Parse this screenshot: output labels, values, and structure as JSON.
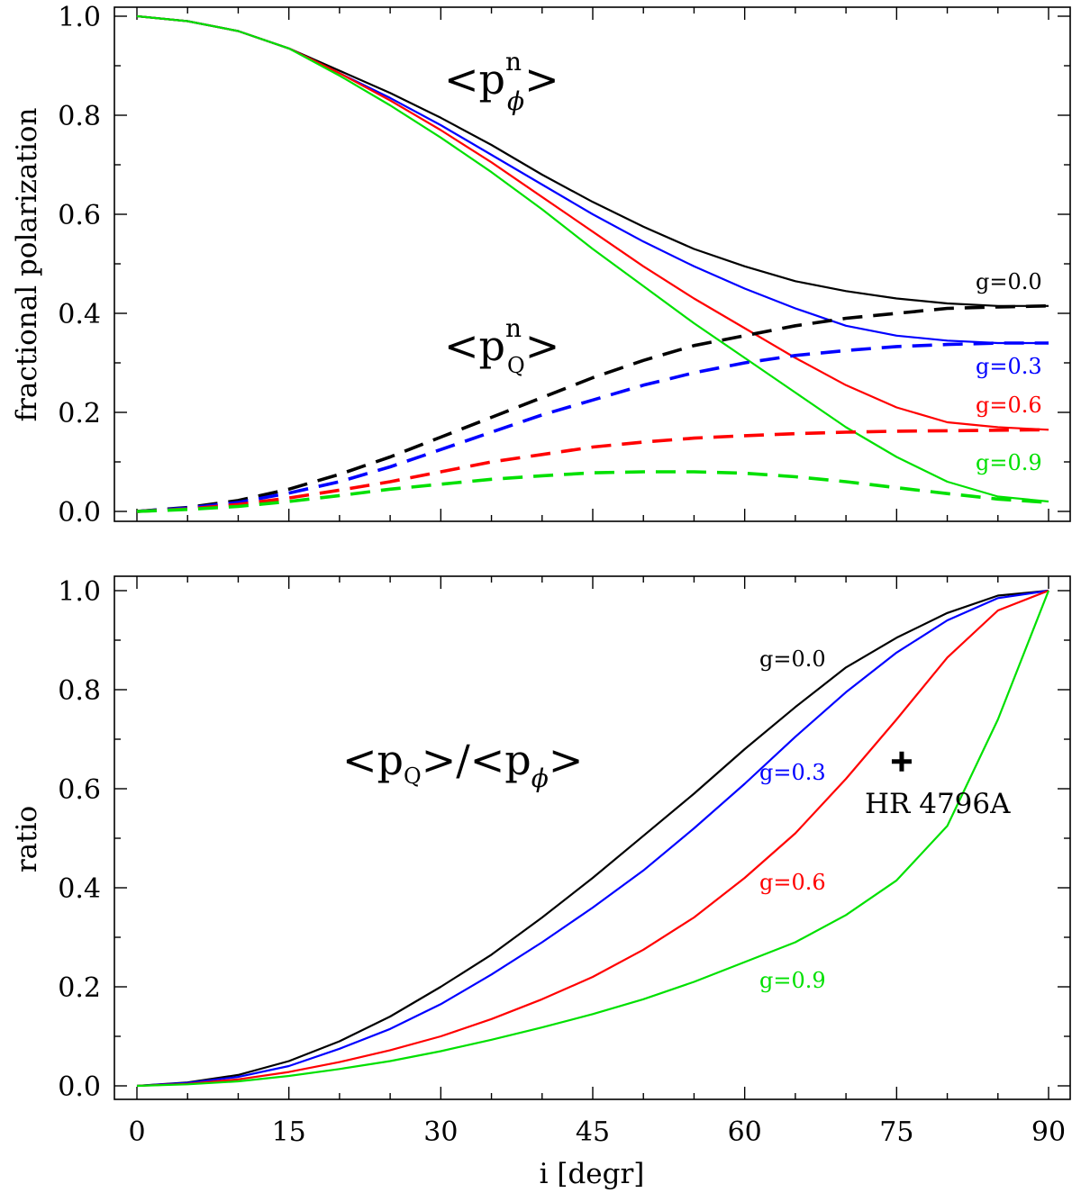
{
  "chart_data": [
    {
      "type": "line",
      "panel": "top",
      "ylabel": "fractional polarization",
      "xlabel": "",
      "xlim": [
        0,
        90
      ],
      "ylim": [
        0.0,
        1.0
      ],
      "x_ticks": [
        "0",
        "15",
        "30",
        "45",
        "60",
        "75",
        "90"
      ],
      "y_ticks": [
        "0.0",
        "0.2",
        "0.4",
        "0.6",
        "0.8",
        "1.0"
      ],
      "annotations": {
        "phi_base": "<p",
        "phi_sup": "n",
        "phi_sub": "ϕ",
        "phi_end": ">",
        "q_base": "<p",
        "q_sup": "n",
        "q_sub": "Q",
        "q_end": ">"
      },
      "x": [
        0,
        5,
        10,
        15,
        20,
        25,
        30,
        35,
        40,
        45,
        50,
        55,
        60,
        65,
        70,
        75,
        80,
        85,
        90
      ],
      "series": [
        {
          "name": "g=0.0 <p_phi^n>",
          "label": "g=0.0",
          "color": "#000000",
          "style": "solid",
          "values": [
            1.0,
            0.99,
            0.97,
            0.935,
            0.89,
            0.845,
            0.795,
            0.74,
            0.68,
            0.625,
            0.575,
            0.53,
            0.495,
            0.465,
            0.445,
            0.43,
            0.42,
            0.415,
            0.415
          ]
        },
        {
          "name": "g=0.3 <p_phi^n>",
          "label": "g=0.3",
          "color": "#0000ff",
          "style": "solid",
          "values": [
            1.0,
            0.99,
            0.97,
            0.935,
            0.885,
            0.835,
            0.78,
            0.72,
            0.66,
            0.6,
            0.545,
            0.495,
            0.45,
            0.41,
            0.375,
            0.355,
            0.345,
            0.34,
            0.34
          ]
        },
        {
          "name": "g=0.6 <p_phi^n>",
          "label": "g=0.6",
          "color": "#ff0000",
          "style": "solid",
          "values": [
            1.0,
            0.99,
            0.97,
            0.935,
            0.885,
            0.83,
            0.77,
            0.705,
            0.635,
            0.565,
            0.495,
            0.43,
            0.37,
            0.31,
            0.255,
            0.21,
            0.18,
            0.17,
            0.165
          ]
        },
        {
          "name": "g=0.9 <p_phi^n>",
          "label": "g=0.9",
          "color": "#00e000",
          "style": "solid",
          "values": [
            1.0,
            0.99,
            0.97,
            0.935,
            0.88,
            0.82,
            0.755,
            0.685,
            0.61,
            0.53,
            0.455,
            0.38,
            0.31,
            0.24,
            0.17,
            0.11,
            0.06,
            0.03,
            0.02
          ]
        },
        {
          "name": "g=0.0 <p_Q^n>",
          "color": "#000000",
          "style": "dashed",
          "values": [
            0.0,
            0.008,
            0.022,
            0.045,
            0.075,
            0.11,
            0.15,
            0.19,
            0.23,
            0.27,
            0.305,
            0.335,
            0.355,
            0.375,
            0.39,
            0.4,
            0.41,
            0.413,
            0.415
          ]
        },
        {
          "name": "g=0.3 <p_Q^n>",
          "color": "#0000ff",
          "style": "dashed",
          "values": [
            0.0,
            0.007,
            0.018,
            0.037,
            0.06,
            0.09,
            0.125,
            0.16,
            0.195,
            0.225,
            0.255,
            0.28,
            0.3,
            0.315,
            0.325,
            0.333,
            0.337,
            0.34,
            0.34
          ]
        },
        {
          "name": "g=0.6 <p_Q^n>",
          "color": "#ff0000",
          "style": "dashed",
          "values": [
            0.0,
            0.005,
            0.014,
            0.027,
            0.043,
            0.06,
            0.08,
            0.1,
            0.115,
            0.13,
            0.14,
            0.148,
            0.153,
            0.157,
            0.16,
            0.162,
            0.163,
            0.164,
            0.165
          ]
        },
        {
          "name": "g=0.9 <p_Q^n>",
          "color": "#00e000",
          "style": "dashed",
          "values": [
            0.0,
            0.004,
            0.01,
            0.02,
            0.032,
            0.045,
            0.055,
            0.065,
            0.072,
            0.078,
            0.08,
            0.08,
            0.077,
            0.07,
            0.06,
            0.048,
            0.036,
            0.025,
            0.018
          ]
        }
      ]
    },
    {
      "type": "line",
      "panel": "bottom",
      "ylabel": "ratio",
      "xlabel": "i [degr]",
      "xlim": [
        0,
        90
      ],
      "ylim": [
        0.0,
        1.0
      ],
      "x_ticks": [
        "0",
        "15",
        "30",
        "45",
        "60",
        "75",
        "90"
      ],
      "y_ticks": [
        "0.0",
        "0.2",
        "0.4",
        "0.6",
        "0.8",
        "1.0"
      ],
      "annotations": {
        "ratio_num_base": "<p",
        "ratio_num_sub": "Q",
        "ratio_mid": ">/<p",
        "ratio_den_sub": "ϕ",
        "ratio_end": ">"
      },
      "x": [
        0,
        5,
        10,
        15,
        20,
        25,
        30,
        35,
        40,
        45,
        50,
        55,
        60,
        65,
        70,
        75,
        80,
        85,
        90
      ],
      "series": [
        {
          "name": "g=0.0 ratio",
          "label": "g=0.0",
          "color": "#000000",
          "style": "solid",
          "values": [
            0.0,
            0.007,
            0.022,
            0.05,
            0.09,
            0.14,
            0.2,
            0.265,
            0.34,
            0.42,
            0.505,
            0.59,
            0.68,
            0.765,
            0.845,
            0.905,
            0.955,
            0.99,
            1.0
          ]
        },
        {
          "name": "g=0.3 ratio",
          "label": "g=0.3",
          "color": "#0000ff",
          "style": "solid",
          "values": [
            0.0,
            0.006,
            0.018,
            0.04,
            0.075,
            0.115,
            0.165,
            0.225,
            0.29,
            0.36,
            0.435,
            0.52,
            0.61,
            0.705,
            0.795,
            0.875,
            0.94,
            0.985,
            1.0
          ]
        },
        {
          "name": "g=0.6 ratio",
          "label": "g=0.6",
          "color": "#ff0000",
          "style": "solid",
          "values": [
            0.0,
            0.004,
            0.013,
            0.028,
            0.048,
            0.072,
            0.1,
            0.135,
            0.175,
            0.22,
            0.275,
            0.34,
            0.42,
            0.51,
            0.62,
            0.74,
            0.865,
            0.96,
            1.0
          ]
        },
        {
          "name": "g=0.9 ratio",
          "label": "g=0.9",
          "color": "#00e000",
          "style": "solid",
          "values": [
            0.0,
            0.003,
            0.009,
            0.02,
            0.034,
            0.05,
            0.07,
            0.093,
            0.118,
            0.145,
            0.175,
            0.21,
            0.25,
            0.29,
            0.345,
            0.415,
            0.525,
            0.74,
            1.0
          ]
        }
      ],
      "points": [
        {
          "label": "HR 4796A",
          "x": 75.5,
          "y": 0.655,
          "color": "#000000"
        }
      ]
    }
  ]
}
